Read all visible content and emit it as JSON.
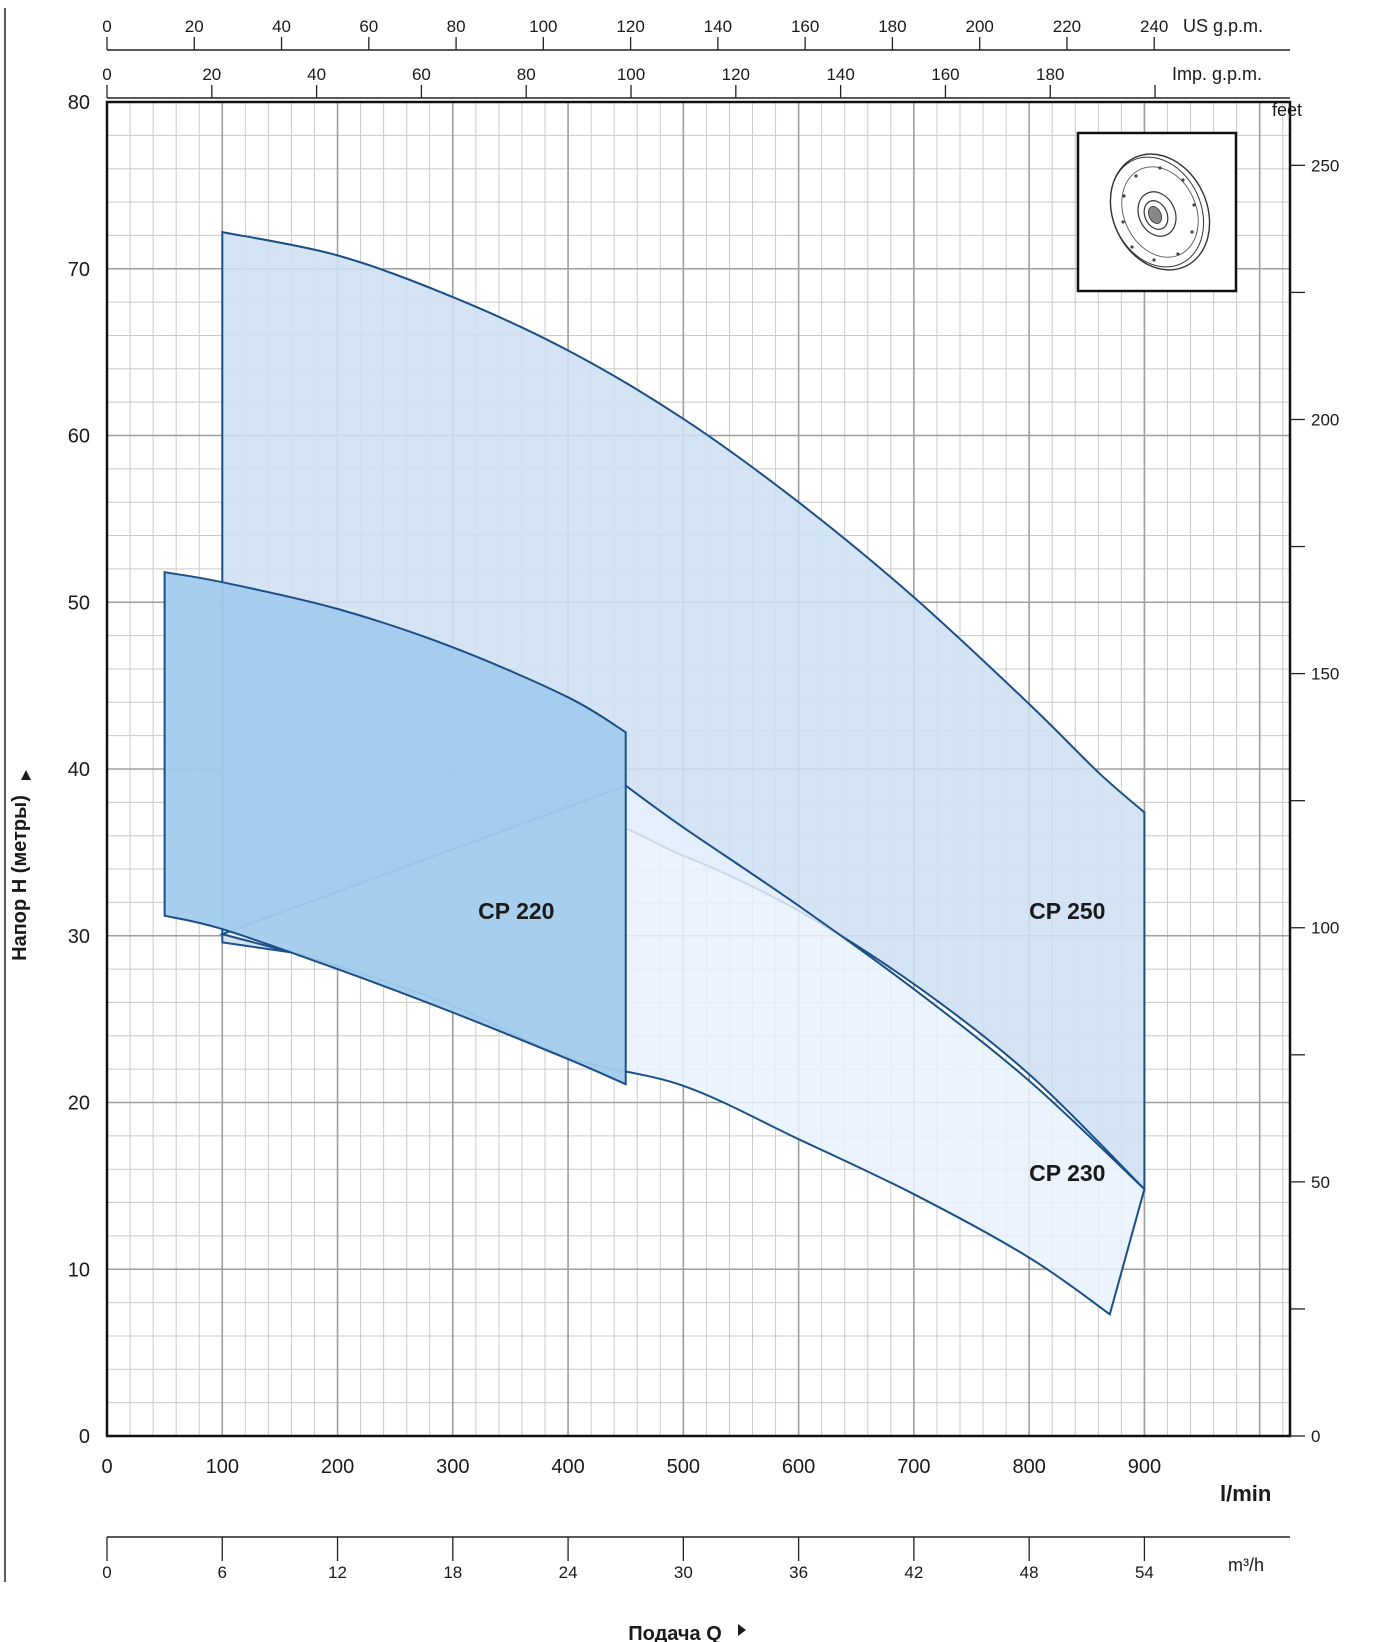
{
  "chart_data": {
    "type": "area",
    "xlabel": "Подача Q",
    "ylabel": "Напор H (метры)",
    "x_unit": "l/min",
    "xlim": [
      0,
      1000
    ],
    "ylim": [
      0,
      80
    ],
    "x_ticks": [
      0,
      100,
      200,
      300,
      400,
      500,
      600,
      700,
      800,
      900
    ],
    "y_ticks": [
      0,
      10,
      20,
      30,
      40,
      50,
      60,
      70,
      80
    ],
    "grid": true,
    "secondary_axes": {
      "us_gpm": {
        "unit": "US g.p.m.",
        "ticks": [
          0,
          20,
          40,
          60,
          80,
          100,
          120,
          140,
          160,
          180,
          200,
          220,
          240
        ]
      },
      "imp_gpm": {
        "unit": "Imp. g.p.m.",
        "ticks": [
          0,
          20,
          40,
          60,
          80,
          100,
          120,
          140,
          160,
          180
        ]
      },
      "m3h": {
        "unit": "m³/h",
        "ticks": [
          0,
          6,
          12,
          18,
          24,
          30,
          36,
          42,
          48,
          54
        ]
      },
      "feet": {
        "unit": "feet",
        "ticks": [
          0,
          50,
          100,
          150,
          200,
          250
        ]
      }
    },
    "series": [
      {
        "name": "CP 250",
        "color": "#cfe0f2",
        "label_at": [
          800,
          31
        ],
        "upper": {
          "x": [
            100,
            200,
            300,
            400,
            500,
            600,
            700,
            800,
            860,
            900
          ],
          "y": [
            72.2,
            70.8,
            68.3,
            65.1,
            61.0,
            56.0,
            50.3,
            43.9,
            39.8,
            37.4
          ]
        },
        "lower": {
          "x": [
            100,
            200,
            300,
            400,
            500,
            600,
            700,
            800,
            900
          ],
          "y": [
            29.6,
            28.6,
            31.5,
            37.0,
            34.8,
            31.5,
            27.1,
            21.7,
            14.8
          ]
        }
      },
      {
        "name": "CP 230",
        "color": "#e8f1fb",
        "label_at": [
          800,
          15.3
        ],
        "upper": {
          "x": [
            450,
            500,
            600,
            700,
            800,
            900
          ],
          "y": [
            39.0,
            36.5,
            31.8,
            26.8,
            21.3,
            14.8
          ]
        },
        "lower": {
          "x": [
            100,
            200,
            300,
            400,
            500,
            600,
            700,
            800,
            870
          ],
          "y": [
            30.1,
            28.2,
            25.8,
            22.7,
            21.0,
            17.8,
            14.5,
            10.7,
            7.3
          ]
        }
      },
      {
        "name": "CP 220",
        "color": "#a3cbec",
        "label_at": [
          322,
          31
        ],
        "upper": {
          "x": [
            50,
            100,
            200,
            300,
            400,
            450
          ],
          "y": [
            51.8,
            51.2,
            49.6,
            47.3,
            44.3,
            42.2
          ]
        },
        "lower": {
          "x": [
            50,
            100,
            200,
            300,
            400,
            450
          ],
          "y": [
            31.2,
            30.4,
            28.0,
            25.4,
            22.6,
            21.1
          ]
        }
      }
    ]
  },
  "icon": "impeller-icon"
}
